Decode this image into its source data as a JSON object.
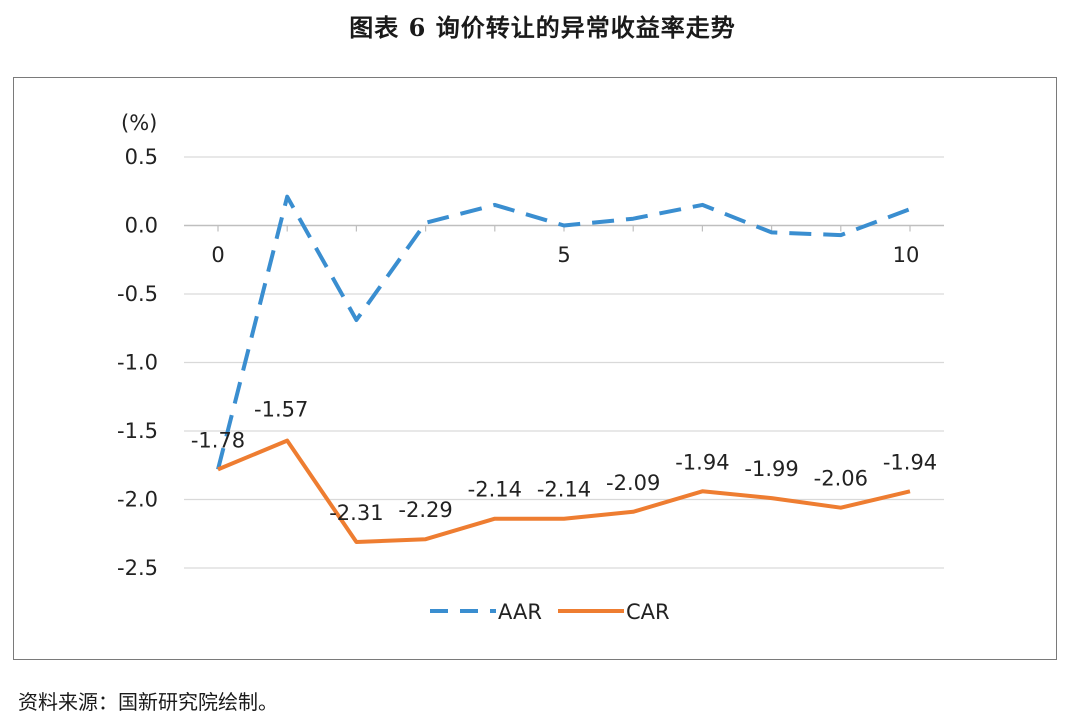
{
  "title": "图表 6  询价转让的异常收益率走势",
  "source": "资料来源：国新研究院绘制。",
  "chart_data": {
    "type": "line",
    "unit_label": "(%)",
    "ylim": [
      -2.5,
      0.5
    ],
    "yticks": [
      0.5,
      0.0,
      -0.5,
      -1.0,
      -1.5,
      -2.0,
      -2.5
    ],
    "ytick_labels": [
      "0.5",
      "0.0",
      "-0.5",
      "-1.0",
      "-1.5",
      "-2.0",
      "-2.5"
    ],
    "xlim": [
      0,
      10
    ],
    "xticks": [
      0,
      5,
      10
    ],
    "xtick_labels": [
      "0",
      "5",
      "10"
    ],
    "x": [
      0,
      1,
      2,
      3,
      4,
      5,
      6,
      7,
      8,
      9,
      10
    ],
    "grid": true,
    "legend_position": "bottom",
    "series": [
      {
        "name": "AAR",
        "style": "dashed",
        "color": "#3a8ed0",
        "values": [
          -1.78,
          0.21,
          -0.69,
          0.02,
          0.15,
          0.0,
          0.05,
          0.15,
          -0.05,
          -0.07,
          0.12
        ]
      },
      {
        "name": "CAR",
        "style": "solid",
        "color": "#ee7d31",
        "values": [
          -1.78,
          -1.57,
          -2.31,
          -2.29,
          -2.14,
          -2.14,
          -2.09,
          -1.94,
          -1.99,
          -2.06,
          -1.94
        ],
        "data_labels": [
          "-1.78",
          "-1.57",
          "-2.31",
          "-2.29",
          "-2.14",
          "-2.14",
          "-2.09",
          "-1.94",
          "-1.99",
          "-2.06",
          "-1.94"
        ]
      }
    ]
  }
}
